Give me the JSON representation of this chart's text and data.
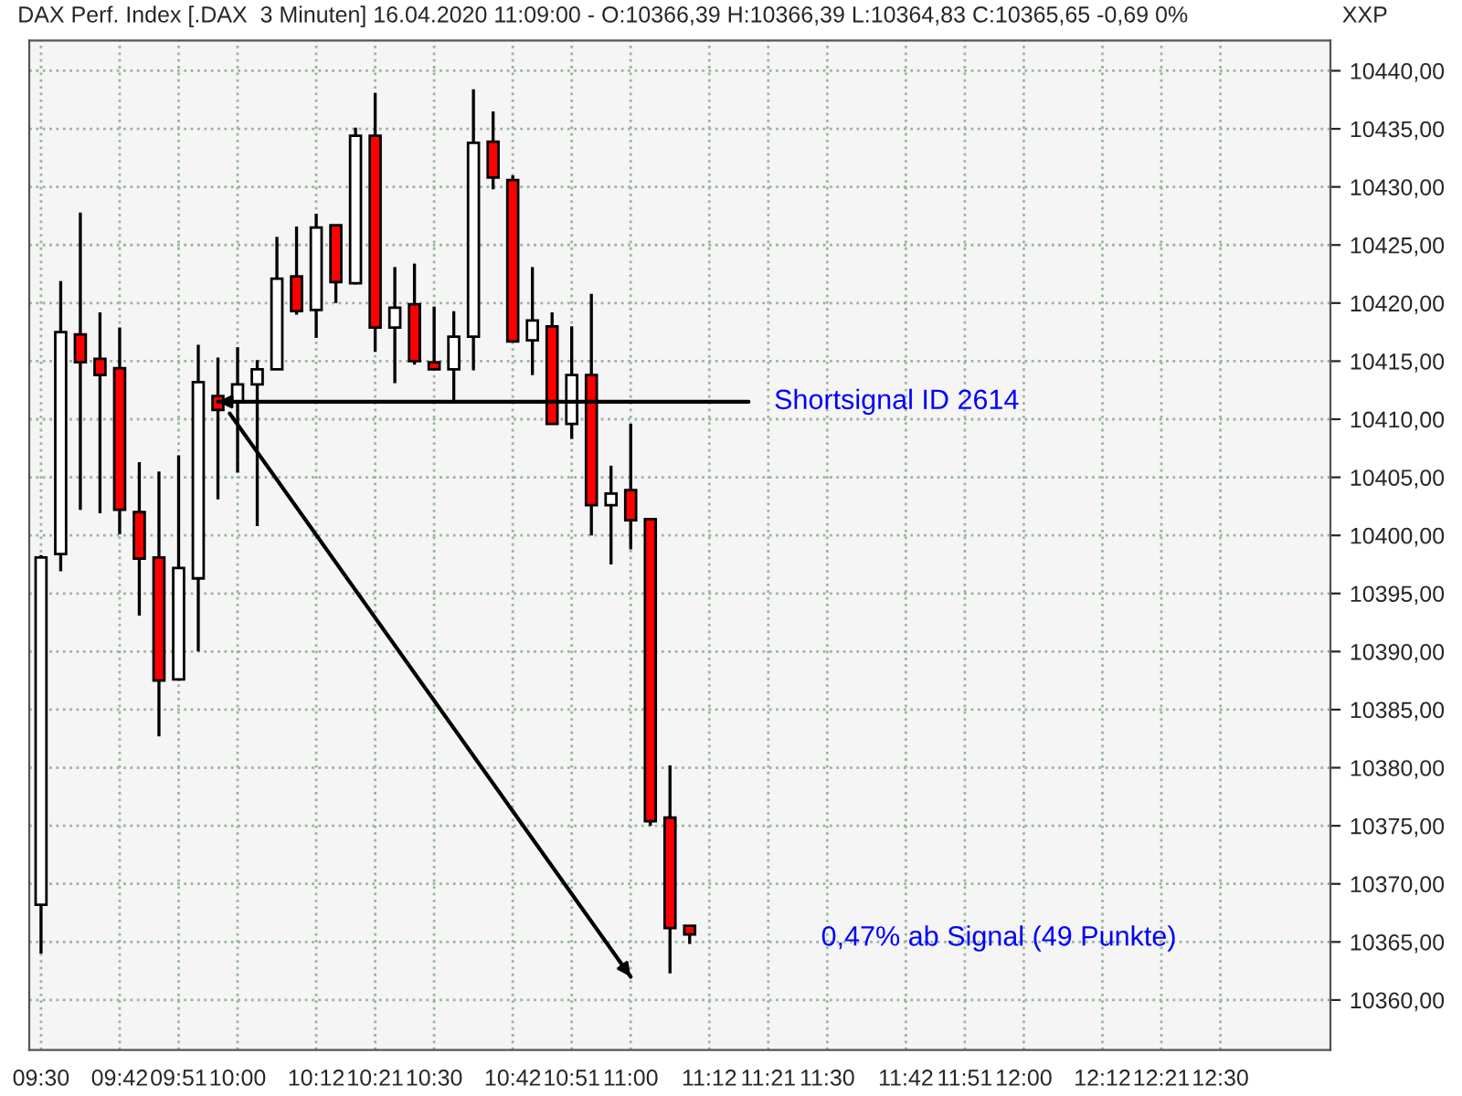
{
  "chart_data": {
    "type": "candlestick",
    "title": "DAX Perf. Index [.DAX  3 Minuten] 16.04.2020 11:09:00 - O:10366,39 H:10366,39 L:10364,83 C:10365,65 -0,69 0%",
    "x": [
      9.5,
      9.55,
      9.6,
      9.65,
      9.7,
      9.75,
      9.8,
      9.85,
      9.9,
      9.95,
      10.0,
      10.05,
      10.1,
      10.15,
      10.2,
      10.25,
      10.3,
      10.35,
      10.4,
      10.45,
      10.5,
      10.55,
      10.6,
      10.65,
      10.7,
      10.75,
      10.8,
      10.85,
      10.9,
      10.95,
      11.0,
      11.05,
      11.1,
      11.15
    ],
    "ohlc": [
      [
        10368.2,
        10398.3,
        10364.0,
        10398.1
      ],
      [
        10398.4,
        10421.9,
        10396.9,
        10417.5
      ],
      [
        10417.3,
        10427.8,
        10402.2,
        10414.9
      ],
      [
        10415.2,
        10419.2,
        10401.9,
        10413.8
      ],
      [
        10414.4,
        10417.9,
        10400.1,
        10402.2
      ],
      [
        10402.0,
        10406.3,
        10393.1,
        10398.0
      ],
      [
        10398.1,
        10405.5,
        10382.7,
        10387.5
      ],
      [
        10387.6,
        10406.9,
        10387.5,
        10397.2
      ],
      [
        10396.3,
        10416.4,
        10390.0,
        10413.2
      ],
      [
        10412.0,
        10415.3,
        10403.1,
        10410.8
      ],
      [
        10411.5,
        10416.2,
        10405.4,
        10413.0
      ],
      [
        10413.0,
        10415.1,
        10400.8,
        10414.3
      ],
      [
        10414.3,
        10425.7,
        10414.3,
        10422.1
      ],
      [
        10422.3,
        10426.6,
        10419.0,
        10419.3
      ],
      [
        10419.4,
        10427.7,
        10417.0,
        10426.5
      ],
      [
        10426.7,
        10426.7,
        10420.0,
        10421.8
      ],
      [
        10421.7,
        10435.1,
        10421.6,
        10434.4
      ],
      [
        10434.4,
        10438.1,
        10415.8,
        10417.9
      ],
      [
        10417.9,
        10423.1,
        10413.1,
        10419.6
      ],
      [
        10419.9,
        10423.4,
        10414.7,
        10415.0
      ],
      [
        10414.9,
        10419.7,
        10414.3,
        10414.3
      ],
      [
        10414.3,
        10419.3,
        10411.6,
        10417.1
      ],
      [
        10417.1,
        10438.4,
        10414.2,
        10433.8
      ],
      [
        10433.9,
        10436.5,
        10429.8,
        10430.8
      ],
      [
        10430.6,
        10431.0,
        10416.6,
        10416.7
      ],
      [
        10416.8,
        10423.1,
        10413.8,
        10418.5
      ],
      [
        10418.0,
        10419.2,
        10409.6,
        10409.6
      ],
      [
        10409.6,
        10418.0,
        10408.3,
        10413.8
      ],
      [
        10413.8,
        10420.8,
        10400.0,
        10402.6
      ],
      [
        10402.6,
        10406.0,
        10397.5,
        10403.6
      ],
      [
        10403.9,
        10409.6,
        10398.8,
        10401.3
      ],
      [
        10401.4,
        10401.4,
        10375.0,
        10375.4
      ],
      [
        10375.7,
        10380.2,
        10362.3,
        10366.2
      ],
      [
        10366.39,
        10366.39,
        10364.83,
        10365.65
      ]
    ],
    "colors": [
      "#ffffff",
      "#ffffff",
      "#ff0000",
      "#ff0000",
      "#ff0000",
      "#ff0000",
      "#ff0000",
      "#ffffff",
      "#ffffff",
      "#ff0000",
      "#ffffff",
      "#ffffff",
      "#ffffff",
      "#ff0000",
      "#ffffff",
      "#ff0000",
      "#ffffff",
      "#ff0000",
      "#ffffff",
      "#ff0000",
      "#ff0000",
      "#ffffff",
      "#ffffff",
      "#ff0000",
      "#ff0000",
      "#ffffff",
      "#ff0000",
      "#ffffff",
      "#ff0000",
      "#ffffff",
      "#ff0000",
      "#ff0000",
      "#ff0000",
      "#ff0000"
    ],
    "series": [
      {
        "type": "line",
        "color": "#000000",
        "x": [
          11.3,
          9.95
        ],
        "values": [
          10411.5,
          10411.5
        ]
      },
      {
        "type": "line",
        "color": "#000000",
        "x": [
          9.98,
          11.0
        ],
        "values": [
          10410.5,
          10362.0
        ]
      }
    ],
    "annotations": [
      "Shortsignal ID 2614",
      "0,47% ab Signal (49 Punkte)",
      "XXP"
    ],
    "xlim": [
      9.47,
      12.78
    ],
    "xticks": [
      {
        "value": 9.5,
        "label": "09:30"
      },
      {
        "value": 9.7,
        "label": "09:42"
      },
      {
        "value": 9.85,
        "label": "09:51"
      },
      {
        "value": 10.0,
        "label": "10:00"
      },
      {
        "value": 10.2,
        "label": "10:12"
      },
      {
        "value": 10.35,
        "label": "10:21"
      },
      {
        "value": 10.5,
        "label": "10:30"
      },
      {
        "value": 10.7,
        "label": "10:42"
      },
      {
        "value": 10.85,
        "label": "10:51"
      },
      {
        "value": 11.0,
        "label": "11:00"
      },
      {
        "value": 11.2,
        "label": "11:12"
      },
      {
        "value": 11.35,
        "label": "11:21"
      },
      {
        "value": 11.5,
        "label": "11:30"
      },
      {
        "value": 11.7,
        "label": "11:42"
      },
      {
        "value": 11.85,
        "label": "11:51"
      },
      {
        "value": 12.0,
        "label": "12:00"
      },
      {
        "value": 12.2,
        "label": "12:12"
      },
      {
        "value": 12.35,
        "label": "12:21"
      },
      {
        "value": 12.5,
        "label": "12:30"
      }
    ],
    "ylim": [
      10355.7,
      10442.6
    ],
    "yticks": [
      {
        "value": 10360,
        "label": "10360,00"
      },
      {
        "value": 10365,
        "label": "10365,00"
      },
      {
        "value": 10370,
        "label": "10370,00"
      },
      {
        "value": 10375,
        "label": "10375,00"
      },
      {
        "value": 10380,
        "label": "10380,00"
      },
      {
        "value": 10385,
        "label": "10385,00"
      },
      {
        "value": 10390,
        "label": "10390,00"
      },
      {
        "value": 10395,
        "label": "10395,00"
      },
      {
        "value": 10400,
        "label": "10400,00"
      },
      {
        "value": 10405,
        "label": "10405,00"
      },
      {
        "value": 10410,
        "label": "10410,00"
      },
      {
        "value": 10415,
        "label": "10415,00"
      },
      {
        "value": 10420,
        "label": "10420,00"
      },
      {
        "value": 10425,
        "label": "10425,00"
      },
      {
        "value": 10430,
        "label": "10430,00"
      },
      {
        "value": 10435,
        "label": "10435,00"
      },
      {
        "value": 10440,
        "label": "10440,00"
      }
    ],
    "grid": true
  }
}
